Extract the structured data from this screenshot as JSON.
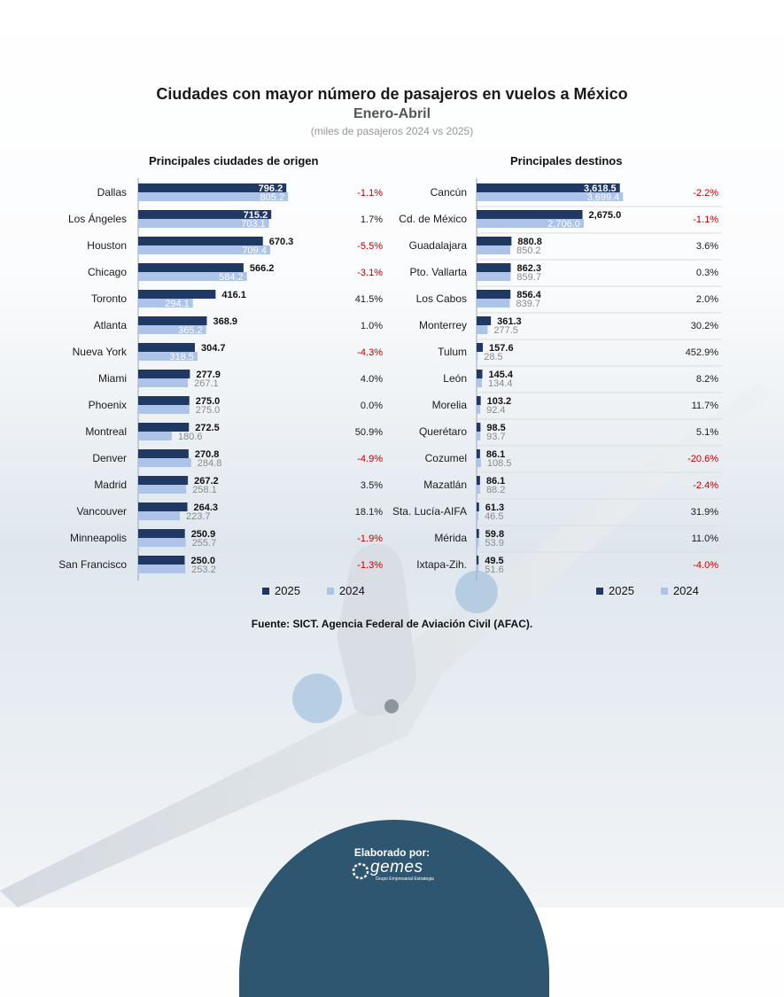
{
  "header": {
    "title": "Ciudades con mayor número de pasajeros en vuelos a México",
    "subtitle": "Enero-Abril",
    "units": "(miles de pasajeros 2024 vs 2025)"
  },
  "colors": {
    "series_2025": "#1f3864",
    "series_2024": "#aec3e8",
    "negative": "#c00000",
    "neutral": "#1a1a1a",
    "footer": "#2e5670"
  },
  "chart_data": [
    {
      "type": "bar",
      "orientation": "horizontal",
      "title": "Principales ciudades de origen",
      "categories": [
        "Dallas",
        "Los Ángeles",
        "Houston",
        "Chicago",
        "Toronto",
        "Atlanta",
        "Nueva York",
        "Miami",
        "Phoenix",
        "Montreal",
        "Denver",
        "Madrid",
        "Vancouver",
        "Minneapolis",
        "San Francisco"
      ],
      "series": [
        {
          "name": "2025",
          "values": [
            796.2,
            715.2,
            670.3,
            566.2,
            416.1,
            368.9,
            304.7,
            277.9,
            275.0,
            272.5,
            270.8,
            267.2,
            264.3,
            250.9,
            250.0
          ],
          "labels": [
            "796.2",
            "715.2",
            "670.3",
            "566.2",
            "416.1",
            "368.9",
            "304.7",
            "277.9",
            "275.0",
            "272.5",
            "270.8",
            "267.2",
            "264.3",
            "250.9",
            "250.0"
          ]
        },
        {
          "name": "2024",
          "values": [
            805.2,
            703.1,
            709.4,
            584.2,
            294.1,
            365.2,
            318.5,
            267.1,
            275.0,
            180.6,
            284.8,
            258.1,
            223.7,
            255.7,
            253.2
          ],
          "labels": [
            "805.2",
            "703.1",
            "709.4",
            "584.2",
            "294.1",
            "365.2",
            "318.5",
            "267.1",
            "275.0",
            "180.6",
            "284.8",
            "258.1",
            "223.7",
            "255.7",
            "253.2"
          ]
        }
      ],
      "change": [
        "-1.1%",
        "1.7%",
        "-5.5%",
        "-3.1%",
        "41.5%",
        "1.0%",
        "-4.3%",
        "4.0%",
        "0.0%",
        "50.9%",
        "-4.9%",
        "3.5%",
        "18.1%",
        "-1.9%",
        "-1.3%"
      ],
      "scale_max": 1000
    },
    {
      "type": "bar",
      "orientation": "horizontal",
      "title": "Principales destinos",
      "categories": [
        "Cancún",
        "Cd. de México",
        "Guadalajara",
        "Pto. Vallarta",
        "Los Cabos",
        "Monterrey",
        "Tulum",
        "León",
        "Morelia",
        "Querétaro",
        "Cozumel",
        "Mazatlán",
        "Sta. Lucía-AIFA",
        "Mérida",
        "Ixtapa-Zih."
      ],
      "series": [
        {
          "name": "2025",
          "values": [
            3618.5,
            2675.0,
            880.8,
            862.3,
            856.4,
            361.3,
            157.6,
            145.4,
            103.2,
            98.5,
            86.1,
            86.1,
            61.3,
            59.8,
            49.5
          ],
          "labels": [
            "3,618.5",
            "2,675.0",
            "880.8",
            "862.3",
            "856.4",
            "361.3",
            "157.6",
            "145.4",
            "103.2",
            "98.5",
            "86.1",
            "86.1",
            "61.3",
            "59.8",
            "49.5"
          ]
        },
        {
          "name": "2024",
          "values": [
            3699.4,
            2706.0,
            850.2,
            859.7,
            839.7,
            277.5,
            28.5,
            134.4,
            92.4,
            93.7,
            108.5,
            88.2,
            46.5,
            53.9,
            51.6
          ],
          "labels": [
            "3,699.4",
            "2,706.0",
            "850.2",
            "859.7",
            "839.7",
            "277.5",
            "28.5",
            "134.4",
            "92.4",
            "93.7",
            "108.5",
            "88.2",
            "46.5",
            "53.9",
            "51.6"
          ]
        }
      ],
      "change": [
        "-2.2%",
        "-1.1%",
        "3.6%",
        "0.3%",
        "2.0%",
        "30.2%",
        "452.9%",
        "8.2%",
        "11.7%",
        "5.1%",
        "-20.6%",
        "-2.4%",
        "31.9%",
        "11.0%",
        "-4.0%"
      ],
      "scale_max": 4700
    }
  ],
  "legend": {
    "label_2025": "2025",
    "label_2024": "2024"
  },
  "source": "Fuente: SICT. Agencia Federal de Aviación Civil (AFAC).",
  "footer": {
    "label": "Elaborado por:",
    "logo_text": "gemes",
    "logo_sub": "Grupo Empresarial Estrategia"
  }
}
